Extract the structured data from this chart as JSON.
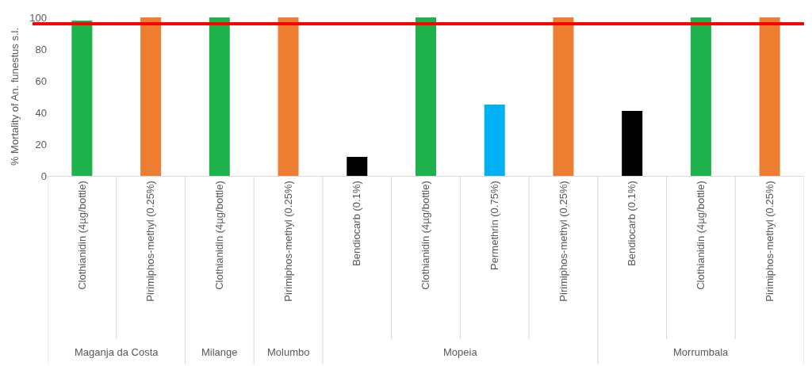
{
  "chart_data": {
    "type": "bar",
    "ylabel": "% Mortality of An. funestus s.l.",
    "categories": [
      "Clothianidin (4µg/bottle)",
      "Pirimiphos-methyl (0.25%)",
      "Clothianidin (4µg/bottle)",
      "Pirimiphos-methyl (0.25%)",
      "Bendiocarb (0.1%)",
      "Clothianidin (4µg/bottle)",
      "Permethrin (0.75%)",
      "Pirimiphos-methyl (0.25%)",
      "Bendiocarb (0.1%)",
      "Clothianidin (4µg/bottle)",
      "Pirimiphos-methyl (0.25%)"
    ],
    "values": [
      98,
      100,
      100,
      100,
      12,
      100,
      45,
      100,
      41,
      100,
      100
    ],
    "colors": [
      "#1db24b",
      "#ed7d31",
      "#1db24b",
      "#ed7d31",
      "#000000",
      "#1db24b",
      "#00b0f0",
      "#ed7d31",
      "#000000",
      "#1db24b",
      "#ed7d31"
    ],
    "ylim": [
      0,
      100
    ],
    "yticks": [
      0,
      20,
      40,
      60,
      80,
      100
    ],
    "grid": false,
    "ref_lines": [
      {
        "axis": "y",
        "value": 96,
        "color": "#ff0000"
      }
    ],
    "annotations": [
      "Maganja da Costa",
      "Milange",
      "Molumbo",
      "Mopeia",
      "Morrumbala"
    ]
  }
}
